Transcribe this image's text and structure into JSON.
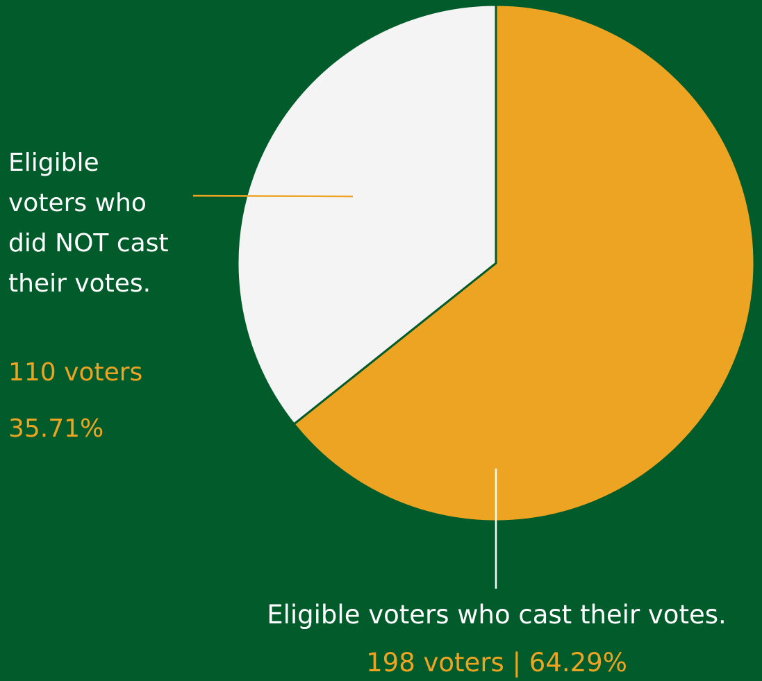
{
  "colors": {
    "background": "#015b2a",
    "cast": "#eea423",
    "not_cast": "#f4f4f4",
    "label_text": "#ffffff",
    "stat_text": "#eea423"
  },
  "chart_data": {
    "type": "pie",
    "title": "",
    "slices": [
      {
        "label": "Eligible voters who cast their votes.",
        "value": 198,
        "percent": 64.29,
        "stats_text": "198 voters | 64.29%",
        "color": "#eea423"
      },
      {
        "label": "Eligible voters who did NOT cast their votes.",
        "value": 110,
        "percent": 35.71,
        "count_text": "110 voters",
        "percent_text": "35.71%",
        "color": "#f4f4f4"
      }
    ],
    "start_angle": "12 o'clock",
    "direction": "clockwise",
    "legend": "none"
  }
}
